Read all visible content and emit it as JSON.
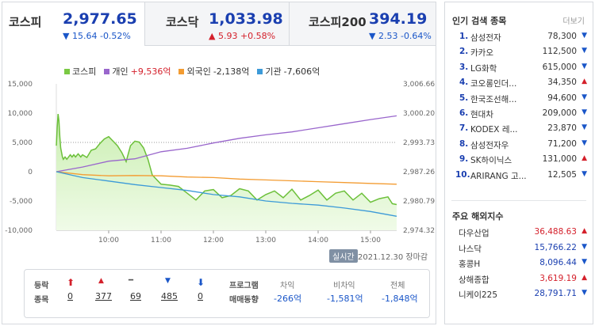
{
  "tabs": [
    {
      "name": "코스피",
      "value": "2,977.65",
      "change": "15.64",
      "rate": "-0.52%",
      "dir": "down",
      "arrow": "▼"
    },
    {
      "name": "코스닥",
      "value": "1,033.98",
      "change": "5.93",
      "rate": "+0.58%",
      "dir": "up",
      "arrow": "▲"
    },
    {
      "name": "코스피200",
      "value": "394.19",
      "change": "2.53",
      "rate": "-0.64%",
      "dir": "down",
      "arrow": "▼"
    }
  ],
  "legend": [
    {
      "name": "코스피",
      "value": "",
      "color": "#7ac943"
    },
    {
      "name": "개인",
      "value": "+9,536억",
      "color": "#9966cc",
      "vcolor": "#d4202b"
    },
    {
      "name": "외국인",
      "value": "-2,138억",
      "color": "#f39c32",
      "vcolor": "#333"
    },
    {
      "name": "기관",
      "value": "-7,606억",
      "color": "#3c9ad8",
      "vcolor": "#333"
    }
  ],
  "chart_data": {
    "type": "line",
    "left_axis": {
      "ticks": [
        "15,000",
        "10,000",
        "5,000",
        "0",
        "-5,000",
        "-10,000"
      ],
      "ylim": [
        -10000,
        15000
      ]
    },
    "right_axis": {
      "ticks": [
        "3,006.66",
        "3,000.20",
        "2,993.73",
        "2,987.26",
        "2,980.79",
        "2,974.32"
      ],
      "ylim": [
        2974.32,
        3006.66
      ]
    },
    "x_ticks": [
      "10:00",
      "11:00",
      "12:00",
      "13:00",
      "14:00",
      "15:00"
    ],
    "x_range": [
      "09:00",
      "15:30"
    ],
    "reference_line": 2993.73,
    "series": [
      {
        "name": "코스피",
        "axis": "right",
        "color": "#6cc03a",
        "x": [
          0,
          1,
          2,
          3,
          4,
          5,
          6,
          7,
          8,
          10,
          12,
          14,
          16,
          18,
          20,
          22,
          25,
          28,
          30,
          35,
          40,
          45,
          50,
          55,
          60,
          65,
          70,
          75,
          80,
          85,
          90,
          95,
          100,
          105,
          110,
          120,
          130,
          140,
          150,
          160,
          170,
          180,
          190,
          200,
          210,
          220,
          230,
          240,
          250,
          260,
          270,
          280,
          290,
          300,
          310,
          320,
          330,
          340,
          350,
          360,
          370,
          380,
          385,
          390
        ],
        "y": [
          2993.0,
          2997.0,
          3000.0,
          2998.5,
          2995.0,
          2992.5,
          2991.5,
          2990.5,
          2990.0,
          2990.5,
          2990.0,
          2990.5,
          2991.0,
          2990.5,
          2991.0,
          2990.5,
          2991.2,
          2990.5,
          2991.0,
          2990.4,
          2992.0,
          2992.3,
          2993.5,
          2994.5,
          2995.0,
          2994.0,
          2993.0,
          2991.5,
          2989.5,
          2993.0,
          2994.0,
          2993.8,
          2992.5,
          2990.0,
          2986.5,
          2984.5,
          2984.3,
          2984.0,
          2982.5,
          2981.0,
          2983.0,
          2983.3,
          2981.5,
          2982.0,
          2983.5,
          2983.0,
          2981.0,
          2982.2,
          2983.0,
          2981.5,
          2983.4,
          2981.0,
          2982.0,
          2983.2,
          2981.0,
          2982.5,
          2983.0,
          2981.0,
          2982.5,
          2980.5,
          2981.3,
          2981.7,
          2980.2,
          2980.0
        ]
      },
      {
        "name": "개인",
        "axis": "left",
        "color": "#9966cc",
        "x": [
          0,
          30,
          60,
          90,
          120,
          150,
          180,
          210,
          240,
          270,
          300,
          330,
          360,
          390
        ],
        "y": [
          0,
          800,
          1800,
          2200,
          3400,
          4000,
          4900,
          5700,
          6300,
          6800,
          7500,
          8200,
          8900,
          9536
        ]
      },
      {
        "name": "외국인",
        "axis": "left",
        "color": "#f39c32",
        "x": [
          0,
          30,
          60,
          90,
          120,
          150,
          180,
          210,
          240,
          270,
          300,
          330,
          360,
          390
        ],
        "y": [
          0,
          -500,
          -700,
          -650,
          -700,
          -900,
          -1000,
          -1250,
          -1400,
          -1550,
          -1700,
          -1850,
          -2000,
          -2138
        ]
      },
      {
        "name": "기관",
        "axis": "left",
        "color": "#3c9ad8",
        "x": [
          0,
          30,
          60,
          90,
          120,
          150,
          180,
          210,
          240,
          270,
          300,
          330,
          360,
          390
        ],
        "y": [
          0,
          -1000,
          -1600,
          -2200,
          -2700,
          -3200,
          -3900,
          -4300,
          -5000,
          -5400,
          -5700,
          -6200,
          -6800,
          -7606
        ]
      }
    ]
  },
  "live_label": "실시간",
  "date_text": "2021.12.30 장마감",
  "breadth": {
    "label1": "등락",
    "label2": "종목",
    "items": [
      {
        "icon": "⬆",
        "count": "0",
        "color": "#d4202b"
      },
      {
        "icon": "▲",
        "count": "377",
        "color": "#d4202b"
      },
      {
        "icon": "━",
        "count": "69",
        "color": "#555"
      },
      {
        "icon": "▼",
        "count": "485",
        "color": "#1a56c8"
      },
      {
        "icon": "⬇",
        "count": "0",
        "color": "#1a56c8"
      }
    ]
  },
  "program": {
    "label1": "프로그램",
    "label2": "매매동향",
    "cols": [
      {
        "head": "차익",
        "value": "-266억"
      },
      {
        "head": "비차익",
        "value": "-1,581억"
      },
      {
        "head": "전체",
        "value": "-1,848억"
      }
    ]
  },
  "popular": {
    "title": "인기 검색 종목",
    "more": "더보기",
    "items": [
      {
        "rank": "1.",
        "name": "삼성전자",
        "price": "78,300",
        "arrow": "▼",
        "dir": "down"
      },
      {
        "rank": "2.",
        "name": "카카오",
        "price": "112,500",
        "arrow": "▼",
        "dir": "down"
      },
      {
        "rank": "3.",
        "name": "LG화학",
        "price": "615,000",
        "arrow": "▼",
        "dir": "down"
      },
      {
        "rank": "4.",
        "name": "코오롱인더...",
        "price": "34,350",
        "arrow": "▲",
        "dir": "up"
      },
      {
        "rank": "5.",
        "name": "한국조선해...",
        "price": "94,600",
        "arrow": "▼",
        "dir": "down"
      },
      {
        "rank": "6.",
        "name": "현대차",
        "price": "209,000",
        "arrow": "▼",
        "dir": "down"
      },
      {
        "rank": "7.",
        "name": "KODEX 레...",
        "price": "23,870",
        "arrow": "▼",
        "dir": "down"
      },
      {
        "rank": "8.",
        "name": "삼성전자우",
        "price": "71,200",
        "arrow": "▼",
        "dir": "down"
      },
      {
        "rank": "9.",
        "name": "SK하이닉스",
        "price": "131,000",
        "arrow": "▲",
        "dir": "up"
      },
      {
        "rank": "10.",
        "name": "ARIRANG 고...",
        "price": "12,505",
        "arrow": "▼",
        "dir": "down"
      }
    ]
  },
  "world": {
    "title": "주요 해외지수",
    "items": [
      {
        "name": "다우산업",
        "value": "36,488.63",
        "arrow": "▲",
        "dir": "up"
      },
      {
        "name": "나스닥",
        "value": "15,766.22",
        "arrow": "▼",
        "dir": "down"
      },
      {
        "name": "홍콩H",
        "value": "8,096.44",
        "arrow": "▼",
        "dir": "down"
      },
      {
        "name": "상해종합",
        "value": "3,619.19",
        "arrow": "▲",
        "dir": "up"
      },
      {
        "name": "니케이225",
        "value": "28,791.71",
        "arrow": "▼",
        "dir": "down"
      }
    ]
  }
}
